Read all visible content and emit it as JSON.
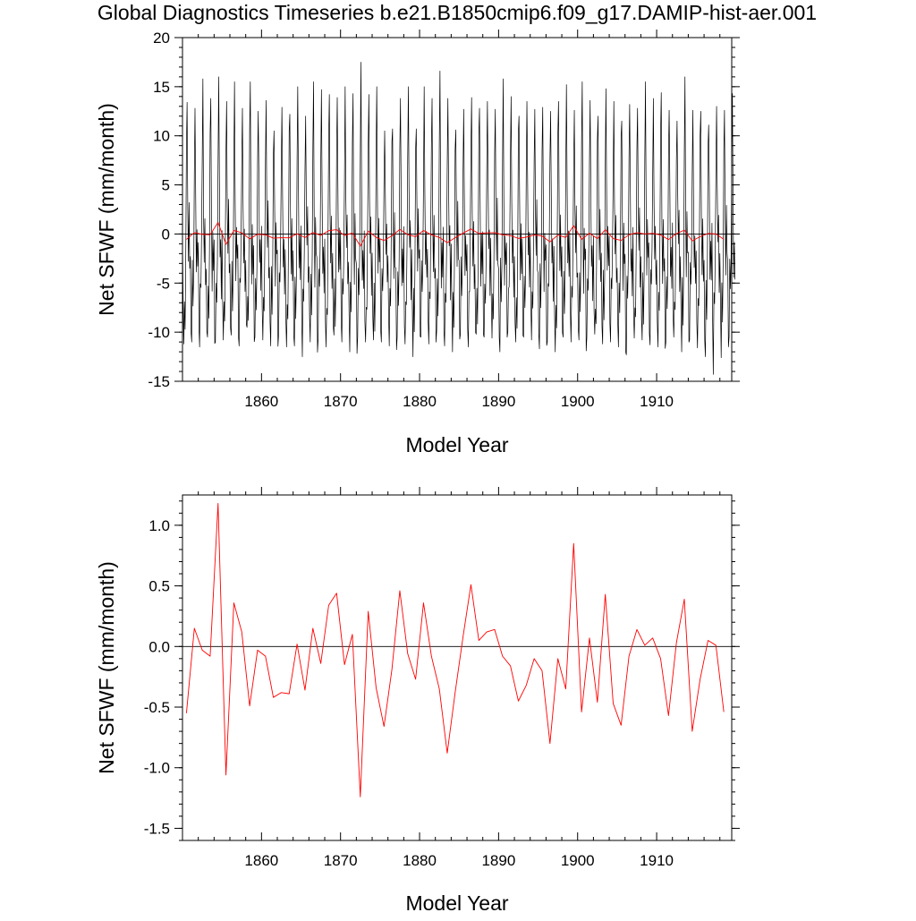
{
  "figure_title": "Global Diagnostics Timeseries b.e21.B1850cmip6.f09_g17.DAMIP-hist-aer.001",
  "colors": {
    "monthly": "#000000",
    "annual": "#ff0000",
    "zero_line": "#000000"
  },
  "chart_data": [
    {
      "type": "line",
      "title": "Global Diagnostics Timeseries b.e21.B1850cmip6.f09_g17.DAMIP-hist-aer.001",
      "xlabel": "Model Year",
      "ylabel": "Net SFWF (mm/month)",
      "xlim": [
        1850,
        1919.5
      ],
      "ylim": [
        -15,
        20
      ],
      "xticks": [
        1860,
        1870,
        1880,
        1890,
        1900,
        1910
      ],
      "yticks": [
        -15,
        -10,
        -5,
        0,
        5,
        10,
        15,
        20
      ],
      "ytick_labels": [
        "-15",
        "-10",
        "-5",
        "0",
        "5",
        "10",
        "15",
        "20"
      ],
      "reference_line": 0,
      "series": [
        {
          "color": "#000000",
          "x_start": 1850,
          "x_step": 0.0833333,
          "monthly_pattern": [
            -1.5,
            -9.5,
            -10.5,
            -5.0,
            -7.5,
            -2.0,
            8.0,
            12.5,
            3.5,
            -3.5,
            1.0,
            -4.5
          ],
          "peaks": [
            13.4,
            12.8,
            15.8,
            13.8,
            16.0,
            13.5,
            15.5,
            12.8,
            15.5,
            12.5,
            13.6,
            10.5,
            12.9,
            12.2,
            15.0,
            12.0,
            15.5,
            14.7,
            14.2,
            13.9,
            15.0,
            14.3,
            17.5,
            14.2,
            15.0,
            10.5,
            10.7,
            13.8,
            15.0,
            10.7,
            15.0,
            13.8,
            16.6,
            13.8,
            10.6,
            12.7,
            13.9,
            12.8,
            13.5,
            12.7,
            15.8,
            14.0,
            12.0,
            13.5,
            12.7,
            12.9,
            12.5,
            13.5,
            15.2,
            12.6,
            15.5,
            13.6,
            12.0,
            14.8,
            13.5,
            11.5,
            13.2,
            12.8,
            15.5,
            13.8,
            14.4,
            12.6,
            11.5,
            16.0,
            12.6,
            12.5,
            11.1,
            13.0,
            12.6,
            14.3
          ],
          "troughs": [
            -11.2,
            -11.0,
            -11.5,
            -10.5,
            -11.0,
            -10.8,
            -10.3,
            -11.4,
            -9.5,
            -10.5,
            -10.8,
            -11.4,
            -10.2,
            -11.5,
            -11.4,
            -12.5,
            -11.0,
            -10.7,
            -11.5,
            -10.3,
            -11.0,
            -12.0,
            -10.5,
            -11.0,
            -10.8,
            -11.0,
            -11.4,
            -10.5,
            -11.2,
            -12.5,
            -10.5,
            -11.2,
            -9.8,
            -11.4,
            -12.0,
            -10.2,
            -11.5,
            -10.2,
            -10.5,
            -10.6,
            -12.0,
            -10.0,
            -11.0,
            -10.5,
            -10.8,
            -11.7,
            -11.0,
            -12.0,
            -10.5,
            -11.0,
            -10.8,
            -10.5,
            -10.2,
            -11.2,
            -11.0,
            -11.5,
            -12.3,
            -10.6,
            -10.8,
            -11.3,
            -11.5,
            -11.0,
            -10.5,
            -12.0,
            -10.8,
            -11.6,
            -12.5,
            -14.3,
            -12.6,
            -10.5
          ]
        },
        {
          "color": "#ff0000",
          "x_start": 1850.5,
          "x_step": 1,
          "values": [
            -0.55,
            0.15,
            -0.03,
            -0.08,
            1.18,
            -1.06,
            0.36,
            0.12,
            -0.49,
            -0.03,
            -0.08,
            -0.42,
            -0.38,
            -0.39,
            0.02,
            -0.36,
            0.15,
            -0.14,
            0.34,
            0.44,
            -0.15,
            0.1,
            -1.24,
            0.29,
            -0.34,
            -0.66,
            -0.19,
            0.46,
            -0.06,
            -0.27,
            0.36,
            -0.08,
            -0.35,
            -0.88,
            -0.38,
            0.08,
            0.51,
            0.05,
            0.12,
            0.14,
            -0.08,
            -0.16,
            -0.45,
            -0.32,
            -0.1,
            -0.2,
            -0.8,
            -0.1,
            -0.35,
            0.85,
            -0.54,
            0.07,
            -0.46,
            0.43,
            -0.47,
            -0.65,
            -0.08,
            0.14,
            0.01,
            0.07,
            -0.1,
            -0.57,
            0.03,
            0.39,
            -0.7,
            -0.27,
            0.05,
            0.01,
            -0.54
          ]
        }
      ]
    },
    {
      "type": "line",
      "title": "",
      "xlabel": "Model Year",
      "ylabel": "Net SFWF (mm/month)",
      "xlim": [
        1850,
        1919.5
      ],
      "ylim": [
        -1.6,
        1.25
      ],
      "xticks": [
        1860,
        1870,
        1880,
        1890,
        1900,
        1910
      ],
      "yticks": [
        -1.5,
        -1.0,
        -0.5,
        0.0,
        0.5,
        1.0
      ],
      "ytick_labels": [
        "-1.5",
        "-1.0",
        "-0.5",
        "0.0",
        "0.5",
        "1.0"
      ],
      "reference_line": 0,
      "series": [
        {
          "color": "#ff0000",
          "x_start": 1850.5,
          "x_step": 1,
          "values": [
            -0.55,
            0.15,
            -0.03,
            -0.08,
            1.18,
            -1.06,
            0.36,
            0.12,
            -0.49,
            -0.03,
            -0.08,
            -0.42,
            -0.38,
            -0.39,
            0.02,
            -0.36,
            0.15,
            -0.14,
            0.34,
            0.44,
            -0.15,
            0.1,
            -1.24,
            0.29,
            -0.34,
            -0.66,
            -0.19,
            0.46,
            -0.06,
            -0.27,
            0.36,
            -0.08,
            -0.35,
            -0.88,
            -0.38,
            0.08,
            0.51,
            0.05,
            0.12,
            0.14,
            -0.08,
            -0.16,
            -0.45,
            -0.32,
            -0.1,
            -0.2,
            -0.8,
            -0.1,
            -0.35,
            0.85,
            -0.54,
            0.07,
            -0.46,
            0.43,
            -0.47,
            -0.65,
            -0.08,
            0.14,
            0.01,
            0.07,
            -0.1,
            -0.57,
            0.03,
            0.39,
            -0.7,
            -0.27,
            0.05,
            0.01,
            -0.54
          ]
        }
      ]
    }
  ]
}
